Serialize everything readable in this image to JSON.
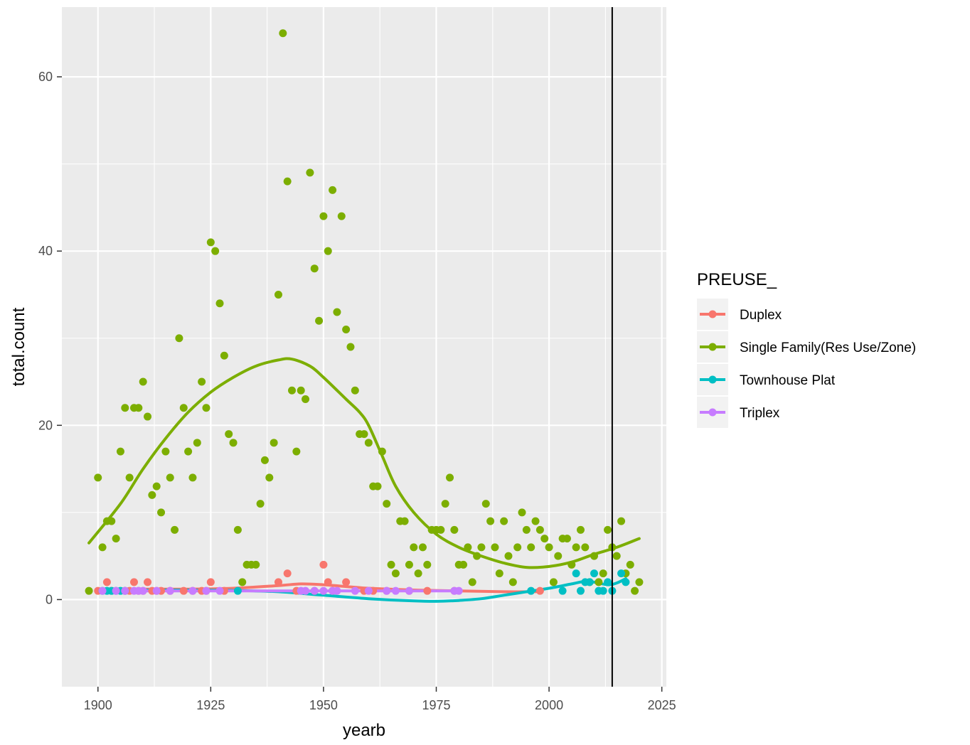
{
  "chart_data": {
    "type": "scatter",
    "xlabel": "yearb",
    "ylabel": "total.count",
    "xlim": [
      1892,
      2026
    ],
    "ylim": [
      -10,
      68
    ],
    "x_ticks": [
      1900,
      1925,
      1950,
      1975,
      2000,
      2025
    ],
    "y_ticks": [
      0,
      20,
      40,
      60
    ],
    "x_tick_labels": [
      "1900",
      "1925",
      "1950",
      "1975",
      "2000",
      "2025"
    ],
    "y_tick_labels": [
      "0",
      "20",
      "40",
      "60"
    ],
    "grid": true,
    "vline_x": 2014,
    "legend": {
      "title": "PREUSE_",
      "position": "right"
    },
    "series": [
      {
        "name": "Duplex",
        "color": "#F8766D",
        "points": [
          [
            1900,
            1
          ],
          [
            1902,
            2
          ],
          [
            1903,
            1
          ],
          [
            1906,
            1
          ],
          [
            1907,
            1
          ],
          [
            1908,
            2
          ],
          [
            1909,
            1
          ],
          [
            1910,
            1
          ],
          [
            1911,
            2
          ],
          [
            1912,
            1
          ],
          [
            1913,
            1
          ],
          [
            1914,
            1
          ],
          [
            1916,
            1
          ],
          [
            1919,
            1
          ],
          [
            1921,
            1
          ],
          [
            1923,
            1
          ],
          [
            1924,
            1
          ],
          [
            1925,
            2
          ],
          [
            1928,
            1
          ],
          [
            1940,
            2
          ],
          [
            1942,
            3
          ],
          [
            1944,
            1
          ],
          [
            1948,
            1
          ],
          [
            1950,
            4
          ],
          [
            1951,
            2
          ],
          [
            1952,
            1
          ],
          [
            1955,
            2
          ],
          [
            1959,
            1
          ],
          [
            1961,
            1
          ],
          [
            1964,
            1
          ],
          [
            1969,
            1
          ],
          [
            1973,
            1
          ],
          [
            1979,
            1
          ],
          [
            1998,
            1
          ]
        ],
        "smooth": [
          [
            1900,
            1.2
          ],
          [
            1910,
            1.2
          ],
          [
            1920,
            1.2
          ],
          [
            1930,
            1.3
          ],
          [
            1940,
            1.6
          ],
          [
            1945,
            1.8
          ],
          [
            1950,
            1.7
          ],
          [
            1955,
            1.5
          ],
          [
            1960,
            1.3
          ],
          [
            1970,
            1.1
          ],
          [
            1980,
            1.0
          ],
          [
            1990,
            0.9
          ],
          [
            1998,
            0.9
          ]
        ]
      },
      {
        "name": "Single Family(Res Use/Zone)",
        "color": "#7CAE00",
        "points": [
          [
            1898,
            1
          ],
          [
            1900,
            14
          ],
          [
            1901,
            6
          ],
          [
            1902,
            9
          ],
          [
            1903,
            9
          ],
          [
            1904,
            7
          ],
          [
            1905,
            17
          ],
          [
            1906,
            22
          ],
          [
            1907,
            14
          ],
          [
            1908,
            22
          ],
          [
            1909,
            22
          ],
          [
            1910,
            25
          ],
          [
            1911,
            21
          ],
          [
            1912,
            12
          ],
          [
            1913,
            13
          ],
          [
            1914,
            10
          ],
          [
            1915,
            17
          ],
          [
            1916,
            14
          ],
          [
            1917,
            8
          ],
          [
            1918,
            30
          ],
          [
            1919,
            22
          ],
          [
            1920,
            17
          ],
          [
            1921,
            14
          ],
          [
            1922,
            18
          ],
          [
            1923,
            25
          ],
          [
            1924,
            22
          ],
          [
            1925,
            41
          ],
          [
            1926,
            40
          ],
          [
            1927,
            34
          ],
          [
            1928,
            28
          ],
          [
            1929,
            19
          ],
          [
            1930,
            18
          ],
          [
            1931,
            8
          ],
          [
            1932,
            2
          ],
          [
            1933,
            4
          ],
          [
            1934,
            4
          ],
          [
            1935,
            4
          ],
          [
            1936,
            11
          ],
          [
            1937,
            16
          ],
          [
            1938,
            14
          ],
          [
            1939,
            18
          ],
          [
            1940,
            35
          ],
          [
            1941,
            65
          ],
          [
            1942,
            48
          ],
          [
            1943,
            24
          ],
          [
            1944,
            17
          ],
          [
            1945,
            24
          ],
          [
            1946,
            23
          ],
          [
            1947,
            49
          ],
          [
            1948,
            38
          ],
          [
            1949,
            32
          ],
          [
            1950,
            44
          ],
          [
            1951,
            40
          ],
          [
            1952,
            47
          ],
          [
            1953,
            33
          ],
          [
            1954,
            44
          ],
          [
            1955,
            31
          ],
          [
            1956,
            29
          ],
          [
            1957,
            24
          ],
          [
            1958,
            19
          ],
          [
            1959,
            19
          ],
          [
            1960,
            18
          ],
          [
            1961,
            13
          ],
          [
            1962,
            13
          ],
          [
            1963,
            17
          ],
          [
            1964,
            11
          ],
          [
            1965,
            4
          ],
          [
            1966,
            3
          ],
          [
            1967,
            9
          ],
          [
            1968,
            9
          ],
          [
            1969,
            4
          ],
          [
            1970,
            6
          ],
          [
            1971,
            3
          ],
          [
            1972,
            6
          ],
          [
            1973,
            4
          ],
          [
            1974,
            8
          ],
          [
            1975,
            8
          ],
          [
            1976,
            8
          ],
          [
            1977,
            11
          ],
          [
            1978,
            14
          ],
          [
            1979,
            8
          ],
          [
            1980,
            4
          ],
          [
            1981,
            4
          ],
          [
            1982,
            6
          ],
          [
            1983,
            2
          ],
          [
            1984,
            5
          ],
          [
            1985,
            6
          ],
          [
            1986,
            11
          ],
          [
            1987,
            9
          ],
          [
            1988,
            6
          ],
          [
            1989,
            3
          ],
          [
            1990,
            9
          ],
          [
            1991,
            5
          ],
          [
            1992,
            2
          ],
          [
            1993,
            6
          ],
          [
            1994,
            10
          ],
          [
            1995,
            8
          ],
          [
            1996,
            6
          ],
          [
            1997,
            9
          ],
          [
            1998,
            8
          ],
          [
            1999,
            7
          ],
          [
            2000,
            6
          ],
          [
            2001,
            2
          ],
          [
            2002,
            5
          ],
          [
            2003,
            7
          ],
          [
            2004,
            7
          ],
          [
            2005,
            4
          ],
          [
            2006,
            6
          ],
          [
            2007,
            8
          ],
          [
            2008,
            6
          ],
          [
            2009,
            2
          ],
          [
            2010,
            5
          ],
          [
            2011,
            2
          ],
          [
            2012,
            3
          ],
          [
            2013,
            8
          ],
          [
            2014,
            6
          ],
          [
            2015,
            5
          ],
          [
            2016,
            9
          ],
          [
            2017,
            3
          ],
          [
            2018,
            4
          ],
          [
            2019,
            1
          ],
          [
            2020,
            2
          ]
        ],
        "smooth": [
          [
            1898,
            6.5
          ],
          [
            1905,
            11
          ],
          [
            1910,
            15
          ],
          [
            1915,
            18.5
          ],
          [
            1920,
            21.5
          ],
          [
            1925,
            23.8
          ],
          [
            1930,
            25.5
          ],
          [
            1935,
            26.8
          ],
          [
            1940,
            27.5
          ],
          [
            1943,
            27.6
          ],
          [
            1947,
            26.8
          ],
          [
            1950,
            25.5
          ],
          [
            1955,
            23
          ],
          [
            1958,
            21.5
          ],
          [
            1960,
            20
          ],
          [
            1963,
            16.5
          ],
          [
            1966,
            13
          ],
          [
            1970,
            10
          ],
          [
            1975,
            7.5
          ],
          [
            1980,
            6
          ],
          [
            1985,
            5
          ],
          [
            1990,
            4.2
          ],
          [
            1995,
            3.7
          ],
          [
            2000,
            3.8
          ],
          [
            2005,
            4.3
          ],
          [
            2010,
            5.2
          ],
          [
            2015,
            6
          ],
          [
            2020,
            7
          ]
        ]
      },
      {
        "name": "Townhouse Plat",
        "color": "#00BFC4",
        "points": [
          [
            1901,
            1
          ],
          [
            1902,
            1
          ],
          [
            1903,
            1
          ],
          [
            1904,
            1
          ],
          [
            1905,
            1
          ],
          [
            1906,
            1
          ],
          [
            1931,
            1
          ],
          [
            1996,
            1
          ],
          [
            2003,
            1
          ],
          [
            2006,
            3
          ],
          [
            2007,
            1
          ],
          [
            2008,
            2
          ],
          [
            2009,
            2
          ],
          [
            2010,
            3
          ],
          [
            2011,
            1
          ],
          [
            2012,
            1
          ],
          [
            2013,
            2
          ],
          [
            2014,
            1
          ],
          [
            2016,
            3
          ],
          [
            2017,
            2
          ]
        ],
        "smooth": [
          [
            1901,
            1.1
          ],
          [
            1910,
            1.1
          ],
          [
            1920,
            1.1
          ],
          [
            1930,
            1.05
          ],
          [
            1940,
            0.9
          ],
          [
            1950,
            0.5
          ],
          [
            1960,
            0.1
          ],
          [
            1970,
            -0.15
          ],
          [
            1975,
            -0.2
          ],
          [
            1980,
            -0.1
          ],
          [
            1985,
            0.1
          ],
          [
            1990,
            0.5
          ],
          [
            1995,
            0.9
          ],
          [
            2000,
            1.3
          ],
          [
            2005,
            1.8
          ],
          [
            2008,
            2.1
          ],
          [
            2010,
            2.0
          ],
          [
            2013,
            1.7
          ],
          [
            2015,
            1.9
          ],
          [
            2017,
            2.4
          ]
        ]
      },
      {
        "name": "Triplex",
        "color": "#C77CFF",
        "points": [
          [
            1901,
            1
          ],
          [
            1904,
            1
          ],
          [
            1906,
            1
          ],
          [
            1908,
            1
          ],
          [
            1909,
            1
          ],
          [
            1910,
            1
          ],
          [
            1913,
            1
          ],
          [
            1916,
            1
          ],
          [
            1921,
            1
          ],
          [
            1924,
            1
          ],
          [
            1927,
            1
          ],
          [
            1945,
            1
          ],
          [
            1946,
            1
          ],
          [
            1948,
            1
          ],
          [
            1950,
            1
          ],
          [
            1952,
            1
          ],
          [
            1953,
            1
          ],
          [
            1957,
            1
          ],
          [
            1960,
            1
          ],
          [
            1964,
            1
          ],
          [
            1966,
            1
          ],
          [
            1969,
            1
          ],
          [
            1979,
            1
          ],
          [
            1980,
            1
          ]
        ],
        "smooth": [
          [
            1901,
            1
          ],
          [
            1920,
            1
          ],
          [
            1940,
            1
          ],
          [
            1960,
            1
          ],
          [
            1980,
            1
          ]
        ]
      }
    ]
  }
}
